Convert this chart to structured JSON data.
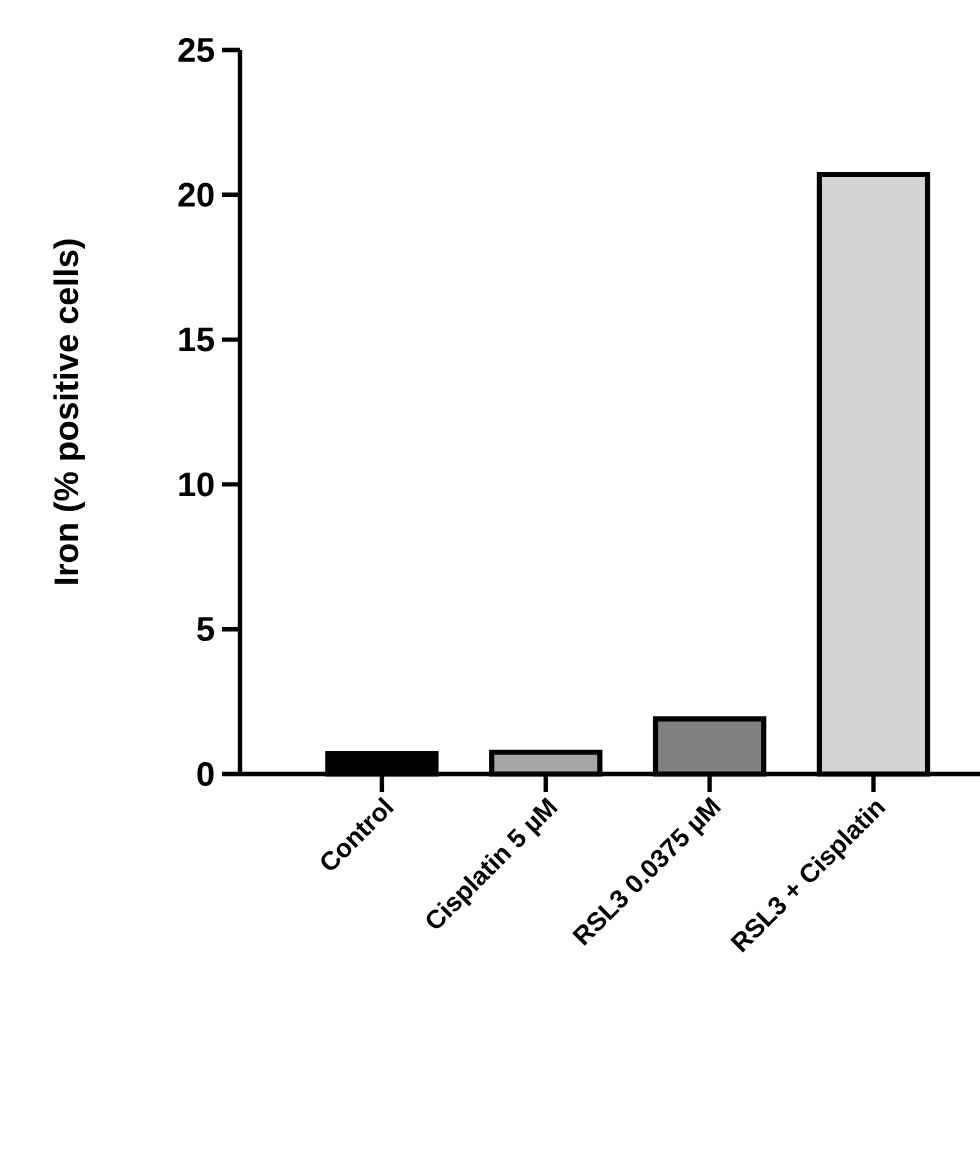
{
  "chart_data": {
    "type": "bar",
    "ylabel": "Iron (% positive cells)",
    "categories": [
      "Control",
      "Cisplatin 5 µM",
      "RSL3 0.0375 µM",
      "RSL3 + Cisplatin"
    ],
    "values": [
      0.7,
      0.75,
      1.9,
      20.7
    ],
    "colors": [
      "#000000",
      "#a6a6a6",
      "#808080",
      "#d4d4d4"
    ],
    "ylim": [
      0,
      25
    ],
    "yticks": [
      0,
      5,
      10,
      15,
      20,
      25
    ]
  }
}
